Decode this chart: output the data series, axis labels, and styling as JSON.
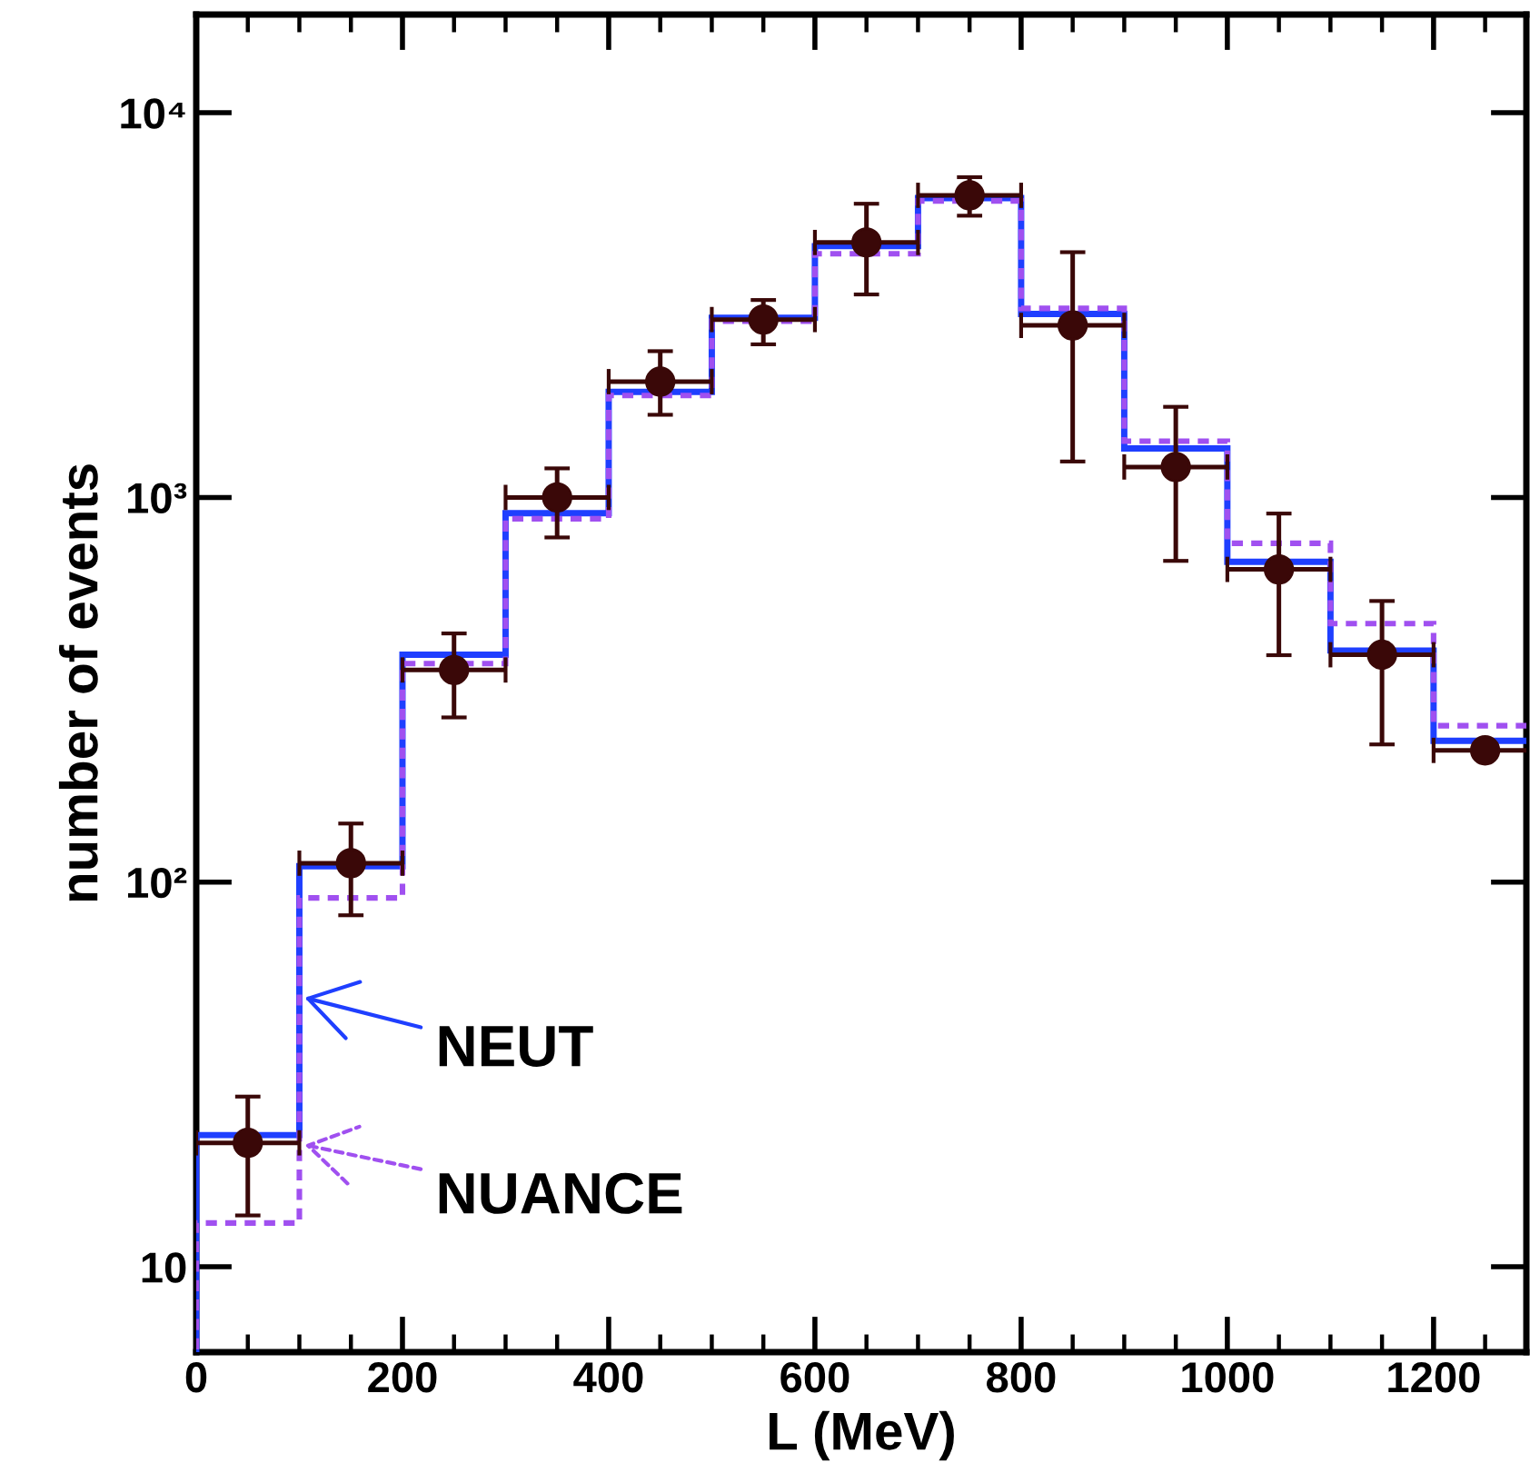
{
  "chart_data": {
    "type": "histogram",
    "xlabel": "L (MeV)",
    "ylabel": "number of events",
    "bins": [
      0,
      100,
      200,
      300,
      400,
      500,
      600,
      700,
      800,
      900,
      1000,
      1100,
      1200,
      1300
    ],
    "series": [
      {
        "name": "NEUT",
        "color": "#1f3fff",
        "line_style": "solid",
        "values": [
          22,
          110,
          390,
          910,
          1880,
          2930,
          4500,
          6000,
          3000,
          1340,
          680,
          400,
          233
        ]
      },
      {
        "name": "NUANCE",
        "color": "#a050f0",
        "line_style": "dashed",
        "values": [
          13,
          91,
          370,
          880,
          1840,
          2870,
          4300,
          5900,
          3100,
          1400,
          760,
          470,
          255
        ]
      },
      {
        "type": "scatter",
        "color": "#3a0808",
        "marker": "circle",
        "x": [
          50,
          150,
          250,
          350,
          450,
          550,
          650,
          750,
          850,
          950,
          1050,
          1150,
          1250
        ],
        "values": [
          21,
          112,
          356,
          1000,
          2000,
          2900,
          4600,
          6100,
          2800,
          1200,
          650,
          390,
          220
        ],
        "errors": [
          [
            13.6,
            27.7
          ],
          [
            82,
            142
          ],
          [
            268,
            443
          ],
          [
            787,
            1190
          ],
          [
            1640,
            2400
          ],
          [
            2500,
            3260
          ],
          [
            3370,
            5800
          ],
          [
            5400,
            6800
          ],
          [
            1240,
            4340
          ],
          [
            684,
            1720
          ],
          [
            389,
            908
          ],
          [
            228,
            538
          ],
          null
        ],
        "xerrors": [
          50,
          50,
          50,
          50,
          50,
          50,
          50,
          50,
          50,
          50,
          50,
          50,
          50
        ]
      }
    ],
    "log": "y",
    "xlim": [
      0,
      1290
    ],
    "ylim": [
      6,
      18000
    ],
    "xticks": [
      0,
      200,
      400,
      600,
      800,
      1000,
      1200
    ],
    "yticks": [
      {
        "value": 10,
        "label": "10"
      },
      {
        "value": 100,
        "label": "10²"
      },
      {
        "value": 1000,
        "label": "10³"
      },
      {
        "value": 10000,
        "label": "10⁴"
      }
    ],
    "grid": false,
    "legend": "bottom left"
  }
}
